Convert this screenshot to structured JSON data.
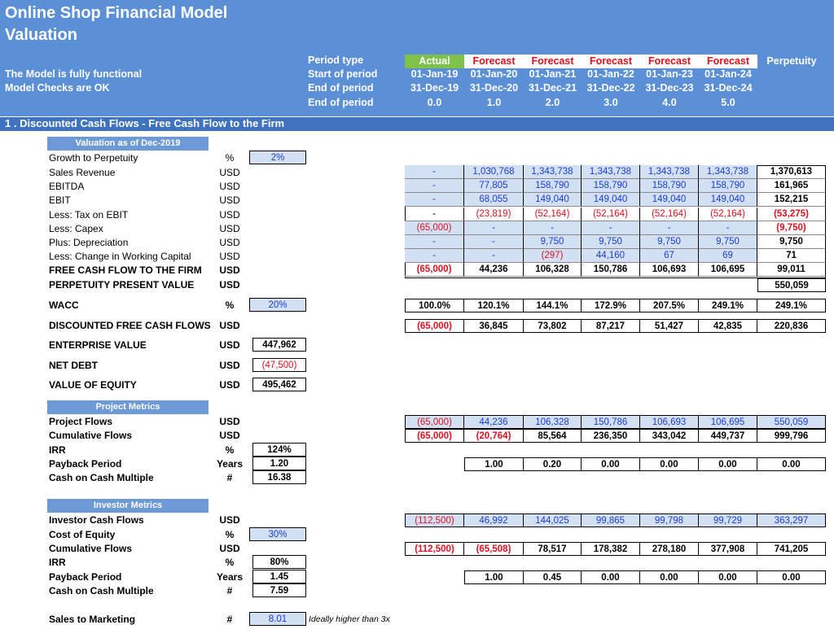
{
  "header": {
    "title1": "Online Shop Financial Model",
    "title2": "Valuation",
    "status1": "The Model is fully functional",
    "status2": "Model Checks are OK",
    "row_labels": [
      "Period type",
      "Start of period",
      "End of period",
      "End of period"
    ],
    "period_types": [
      "Actual",
      "Forecast",
      "Forecast",
      "Forecast",
      "Forecast",
      "Forecast",
      "Perpetuity"
    ],
    "starts": [
      "01-Jan-19",
      "01-Jan-20",
      "01-Jan-21",
      "01-Jan-22",
      "01-Jan-23",
      "01-Jan-24"
    ],
    "ends": [
      "31-Dec-19",
      "31-Dec-20",
      "31-Dec-21",
      "31-Dec-22",
      "31-Dec-23",
      "31-Dec-24"
    ],
    "years": [
      "0.0",
      "1.0",
      "2.0",
      "3.0",
      "4.0",
      "5.0"
    ],
    "colors": {
      "actual": "#7fc24b",
      "forecast": "#e0101e",
      "header_bg": "#5b8fd6"
    }
  },
  "section_title": "1 . Discounted Cash Flows - Free Cash Flow to the Firm",
  "valuation": {
    "block_title": "Valuation as of Dec-2019",
    "growth": {
      "label": "Growth to Perpetuity",
      "unit": "%",
      "value": "2%"
    },
    "rows": [
      {
        "label": "Sales Revenue",
        "unit": "USD",
        "vals": [
          "-",
          "1,030,768",
          "1,343,738",
          "1,343,738",
          "1,343,738",
          "1,343,738",
          "1,370,613"
        ]
      },
      {
        "label": "EBITDA",
        "unit": "USD",
        "vals": [
          "-",
          "77,805",
          "158,790",
          "158,790",
          "158,790",
          "158,790",
          "161,965"
        ]
      },
      {
        "label": "EBIT",
        "unit": "USD",
        "vals": [
          "-",
          "68,055",
          "149,040",
          "149,040",
          "149,040",
          "149,040",
          "152,215"
        ]
      },
      {
        "label": "Less: Tax on EBIT",
        "unit": "USD",
        "vals": [
          "-",
          "(23,819)",
          "(52,164)",
          "(52,164)",
          "(52,164)",
          "(52,164)",
          "(53,275)"
        ]
      },
      {
        "label": "Less: Capex",
        "unit": "USD",
        "vals": [
          "(65,000)",
          "-",
          "-",
          "-",
          "-",
          "-",
          "(9,750)"
        ]
      },
      {
        "label": "Plus: Depreciation",
        "unit": "USD",
        "vals": [
          "-",
          "-",
          "9,750",
          "9,750",
          "9,750",
          "9,750",
          "9,750"
        ]
      },
      {
        "label": "Less: Change in Working Capital",
        "unit": "USD",
        "vals": [
          "-",
          "-",
          "(297)",
          "44,160",
          "67",
          "69",
          "71"
        ]
      },
      {
        "label": "FREE CASH FLOW TO THE FIRM",
        "unit": "USD",
        "vals": [
          "(65,000)",
          "44,236",
          "106,328",
          "150,786",
          "106,693",
          "106,695",
          "99,011"
        ]
      }
    ],
    "ppv": {
      "label": "PERPETUITY PRESENT VALUE",
      "unit": "USD",
      "value": "550,059"
    },
    "wacc": {
      "label": "WACC",
      "unit": "%",
      "input": "20%",
      "vals": [
        "100.0%",
        "120.1%",
        "144.1%",
        "172.9%",
        "207.5%",
        "249.1%",
        "249.1%"
      ]
    },
    "dfcf": {
      "label": "DISCOUNTED FREE CASH FLOWS",
      "unit": "USD",
      "vals": [
        "(65,000)",
        "36,845",
        "73,802",
        "87,217",
        "51,427",
        "42,835",
        "220,836"
      ]
    },
    "ev": {
      "label": "ENTERPRISE VALUE",
      "unit": "USD",
      "value": "447,962"
    },
    "netdebt": {
      "label": "NET DEBT",
      "unit": "USD",
      "value": "(47,500)"
    },
    "equity": {
      "label": "VALUE OF EQUITY",
      "unit": "USD",
      "value": "495,462"
    }
  },
  "project": {
    "block_title": "Project Metrics",
    "flows": {
      "label": "Project Flows",
      "unit": "USD",
      "vals": [
        "(65,000)",
        "44,236",
        "106,328",
        "150,786",
        "106,693",
        "106,695",
        "550,059"
      ]
    },
    "cum": {
      "label": "Cumulative Flows",
      "unit": "USD",
      "vals": [
        "(65,000)",
        "(20,764)",
        "85,564",
        "236,350",
        "343,042",
        "449,737",
        "999,796"
      ]
    },
    "irr": {
      "label": "IRR",
      "unit": "%",
      "value": "124%"
    },
    "payback": {
      "label": "Payback Period",
      "unit": "Years",
      "value": "1.20",
      "vals": [
        "1.00",
        "0.20",
        "0.00",
        "0.00",
        "0.00",
        "0.00"
      ]
    },
    "multiple": {
      "label": "Cash on Cash Multiple",
      "unit": "#",
      "value": "16.38"
    }
  },
  "investor": {
    "block_title": "Investor Metrics",
    "flows": {
      "label": "Investor Cash Flows",
      "unit": "USD",
      "vals": [
        "(112,500)",
        "46,992",
        "144,025",
        "99,865",
        "99,798",
        "99,729",
        "363,297"
      ]
    },
    "coe": {
      "label": "Cost of Equity",
      "unit": "%",
      "value": "30%"
    },
    "cum": {
      "label": "Cumulative Flows",
      "unit": "USD",
      "vals": [
        "(112,500)",
        "(65,508)",
        "78,517",
        "178,382",
        "278,180",
        "377,908",
        "741,205"
      ]
    },
    "irr": {
      "label": "IRR",
      "unit": "%",
      "value": "80%"
    },
    "payback": {
      "label": "Payback Period",
      "unit": "Years",
      "value": "1.45",
      "vals": [
        "1.00",
        "0.45",
        "0.00",
        "0.00",
        "0.00",
        "0.00"
      ]
    },
    "multiple": {
      "label": "Cash on Cash Multiple",
      "unit": "#",
      "value": "7.59"
    }
  },
  "stm": {
    "label": "Sales to Marketing",
    "unit": "#",
    "value": "8.01",
    "note": "Ideally higher than 3x"
  }
}
